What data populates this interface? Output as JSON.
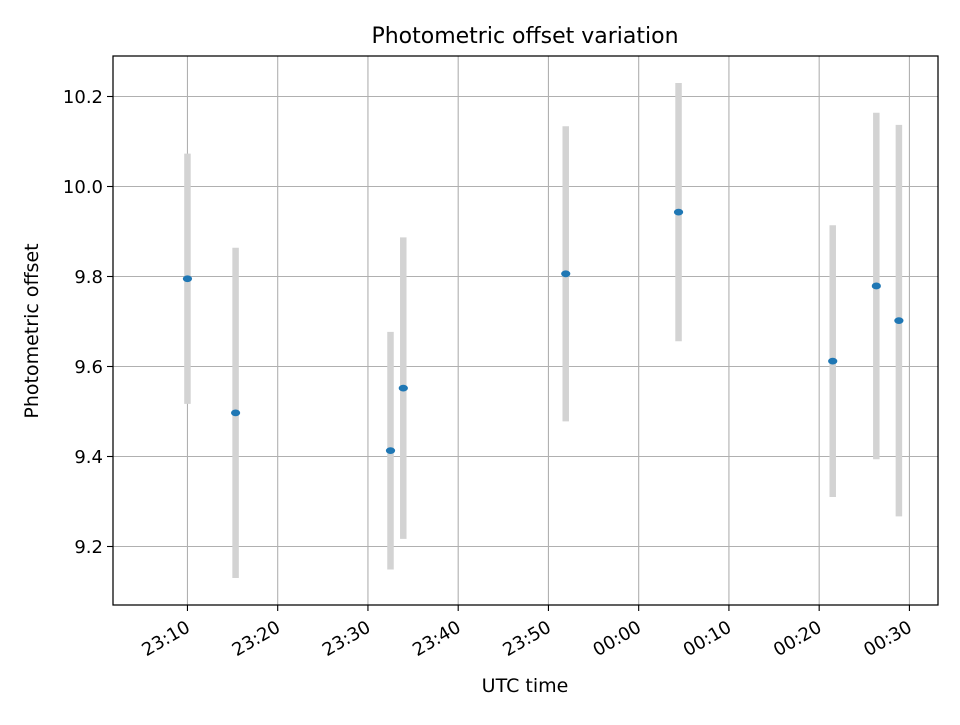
{
  "chart_data": {
    "type": "scatter",
    "title": "Photometric offset variation",
    "xlabel": "UTC time",
    "ylabel": "Photometric offset",
    "x_unit": "minutes",
    "xlim": [
      "23:01:45",
      "00:33:10"
    ],
    "ylim": [
      9.07,
      10.29
    ],
    "x_ticks": [
      "23:10",
      "23:20",
      "23:30",
      "23:40",
      "23:50",
      "00:00",
      "00:10",
      "00:20",
      "00:30"
    ],
    "y_ticks": [
      9.2,
      9.4,
      9.6,
      9.8,
      10.0,
      10.2
    ],
    "y_tick_labels": [
      "9.2",
      "9.4",
      "9.6",
      "9.8",
      "10.0",
      "10.2"
    ],
    "grid": true,
    "marker_color": "#1f77b4",
    "errorbar_color": "#d3d3d3",
    "points": [
      {
        "time": "23:10:00",
        "y": 9.795,
        "yerr": 0.278
      },
      {
        "time": "23:15:20",
        "y": 9.497,
        "yerr": 0.367
      },
      {
        "time": "23:32:30",
        "y": 9.413,
        "yerr": 0.264
      },
      {
        "time": "23:33:55",
        "y": 9.552,
        "yerr": 0.335
      },
      {
        "time": "23:51:55",
        "y": 9.806,
        "yerr": 0.328
      },
      {
        "time": "00:04:25",
        "y": 9.943,
        "yerr": 0.287
      },
      {
        "time": "00:21:30",
        "y": 9.612,
        "yerr": 0.302
      },
      {
        "time": "00:26:20",
        "y": 9.779,
        "yerr": 0.385
      },
      {
        "time": "00:28:50",
        "y": 9.702,
        "yerr": 0.435
      }
    ]
  }
}
